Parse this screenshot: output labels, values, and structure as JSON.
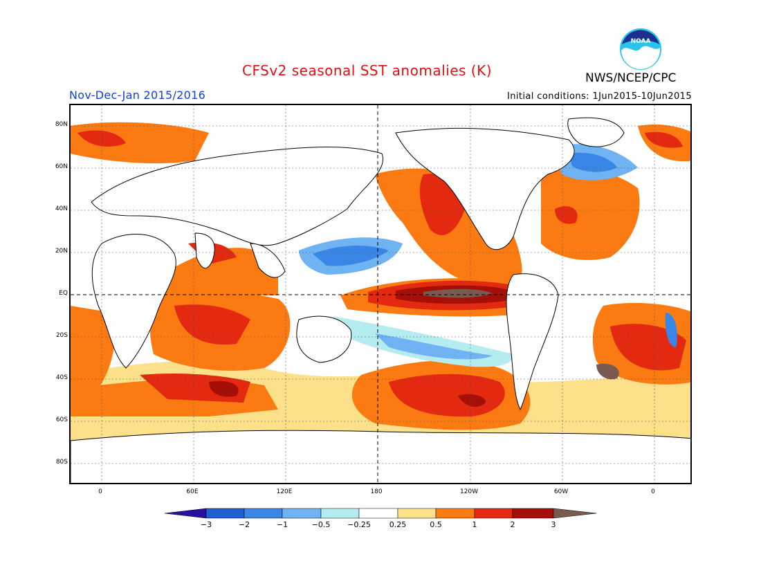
{
  "header": {
    "title": "CFSv2 seasonal SST anomalies (K)",
    "org": "NWS/NCEP/CPC",
    "period": "Nov-Dec-Jan 2015/2016",
    "initial_conditions": "Initial conditions: 1Jun2015-10Jun2015",
    "logo_text": "NOAA"
  },
  "map": {
    "lat_labels": [
      "80N",
      "60N",
      "40N",
      "20N",
      "EQ",
      "20S",
      "40S",
      "60S",
      "80S"
    ],
    "lon_labels": [
      "0",
      "60E",
      "120E",
      "180",
      "120W",
      "60W",
      "0"
    ]
  },
  "legend": {
    "labels": [
      "-3",
      "-2",
      "-1",
      "-0.5",
      "-0.25",
      "0.25",
      "0.5",
      "1",
      "2",
      "3"
    ],
    "colors": [
      "#2a10a0",
      "#1f5fd0",
      "#3a86e6",
      "#6fb3f2",
      "#b4ecf0",
      "#ffffff",
      "#fde08a",
      "#fb7a12",
      "#e32a10",
      "#a41008",
      "#7a5a4f"
    ]
  }
}
